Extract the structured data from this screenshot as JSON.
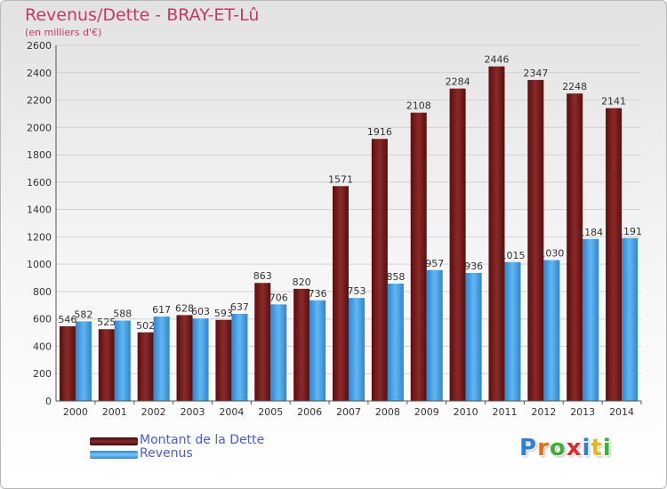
{
  "header": {
    "title": "Revenus/Dette - BRAY-ET-Lû",
    "subtitle": "(en milliers d'€)"
  },
  "legend": {
    "items": [
      {
        "label": "Montant de la Dette",
        "color": "#7a1c1c"
      },
      {
        "label": "Revenus",
        "color": "#4aa3e6"
      }
    ]
  },
  "logo": {
    "letters": [
      "P",
      "r",
      "o",
      "x",
      "i",
      "t",
      "i"
    ],
    "colors": [
      "#2f7fd6",
      "#e0701c",
      "#3cae3c",
      "#d62f2f",
      "#2f7fd6",
      "#e0b81c",
      "#3cae3c"
    ]
  },
  "chart_data": {
    "type": "bar",
    "categories": [
      "2000",
      "2001",
      "2002",
      "2003",
      "2004",
      "2005",
      "2006",
      "2007",
      "2008",
      "2009",
      "2010",
      "2011",
      "2012",
      "2013",
      "2014"
    ],
    "series": [
      {
        "name": "Montant de la Dette",
        "values": [
          546,
          525,
          502,
          628,
          593,
          863,
          820,
          1571,
          1916,
          2108,
          2284,
          2446,
          2347,
          2248,
          2141
        ],
        "color": "#7a1c1c"
      },
      {
        "name": "Revenus",
        "values": [
          582,
          588,
          617,
          603,
          637,
          706,
          736,
          753,
          858,
          957,
          936,
          1015,
          1030,
          1184,
          1191
        ],
        "color": "#4aa3e6"
      }
    ],
    "ylim": [
      0,
      2600
    ],
    "yticks": [
      0,
      200,
      400,
      600,
      800,
      1000,
      1200,
      1400,
      1600,
      1800,
      2000,
      2200,
      2400,
      2600
    ],
    "grid": true,
    "legend_position": "bottom-left"
  }
}
